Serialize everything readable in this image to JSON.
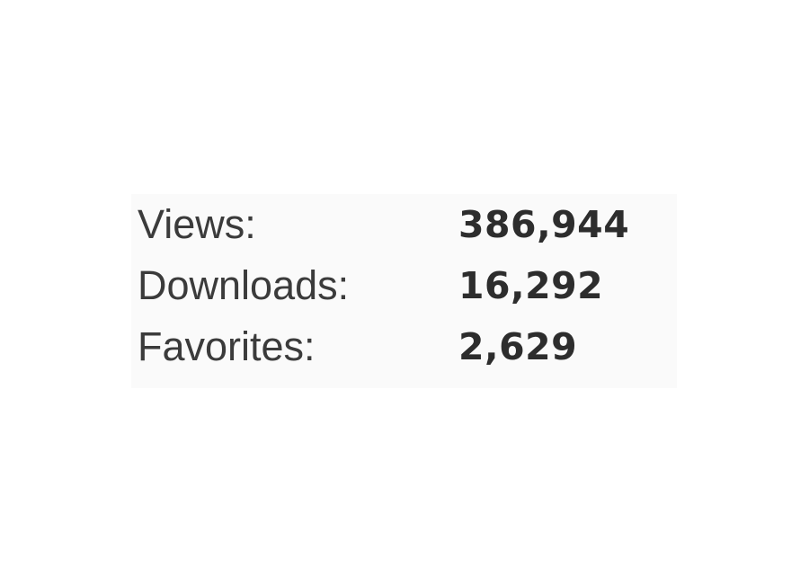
{
  "stats": {
    "items": [
      {
        "label": "Views:",
        "value": "386,944"
      },
      {
        "label": "Downloads:",
        "value": "16,292"
      },
      {
        "label": "Favorites:",
        "value": "2,629"
      }
    ]
  }
}
